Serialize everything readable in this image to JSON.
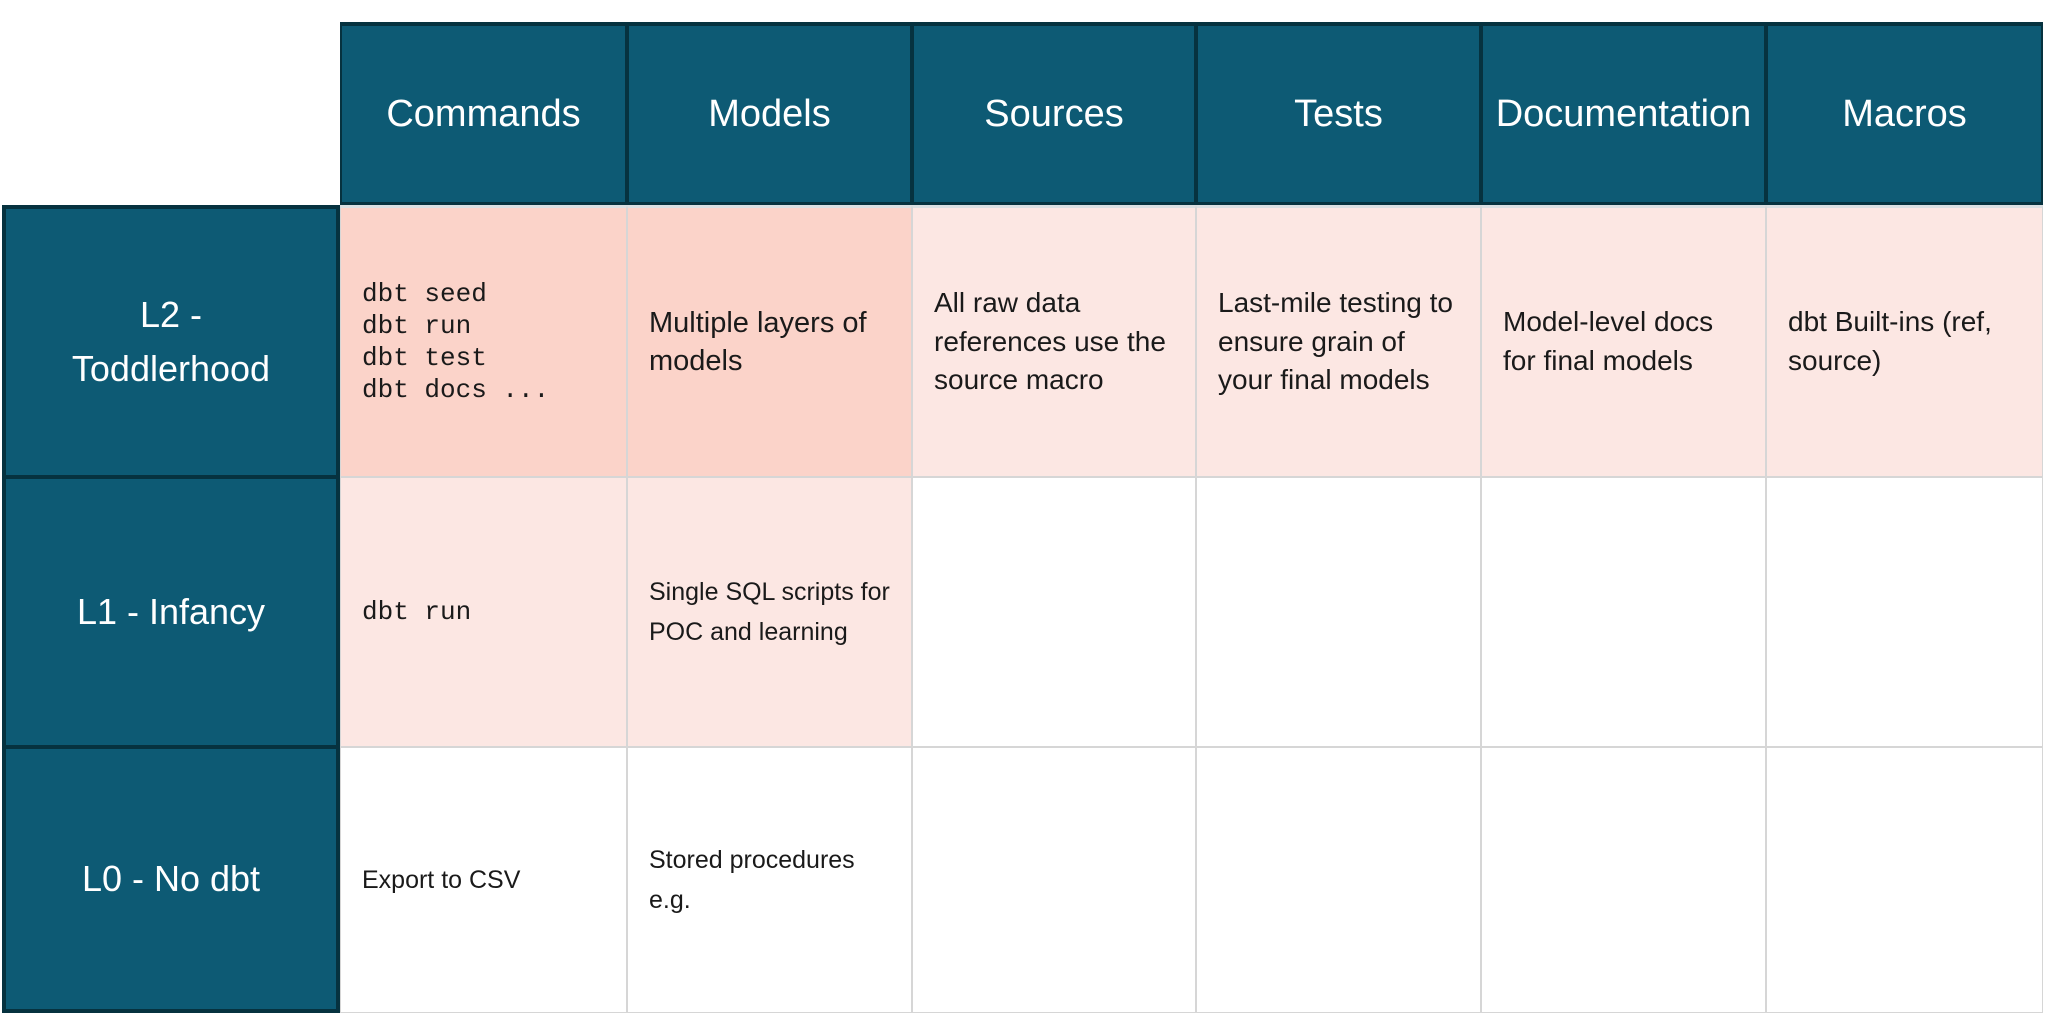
{
  "chart_data": {
    "type": "table",
    "columns": [
      "Commands",
      "Models",
      "Sources",
      "Tests",
      "Documentation",
      "Macros"
    ],
    "rows": [
      {
        "label": "L2 - Toddlerhood",
        "cells": [
          "dbt seed\ndbt run\ndbt test\ndbt docs ...",
          "Multiple layers of models",
          "All raw data references use the source macro",
          "Last-mile testing to ensure grain of your final models",
          "Model-level docs for final models",
          "dbt Built-ins (ref, source)"
        ],
        "cell_highlights": [
          "strong",
          "strong",
          "light",
          "light",
          "light",
          "light"
        ]
      },
      {
        "label": "L1 - Infancy",
        "cells": [
          "dbt run",
          "Single SQL scripts for POC and learning",
          "",
          "",
          "",
          ""
        ],
        "cell_highlights": [
          "light",
          "light",
          "none",
          "none",
          "none",
          "none"
        ]
      },
      {
        "label": "L0 - No dbt",
        "cells": [
          "Export to CSV",
          "Stored procedures e.g.",
          "",
          "",
          "",
          ""
        ],
        "cell_highlights": [
          "none",
          "none",
          "none",
          "none",
          "none",
          "none"
        ]
      }
    ],
    "layout": {
      "grid": "on",
      "header_position": "top-and-left"
    },
    "colors": {
      "header_teal": "#0d5a74",
      "border_dark": "#06323f",
      "highlight_strong": "#fbd3c9",
      "highlight_light": "#fce7e3",
      "grid_line": "#d6d6d6",
      "text_dark": "#1a1a1a",
      "text_light": "#ffffff"
    }
  }
}
